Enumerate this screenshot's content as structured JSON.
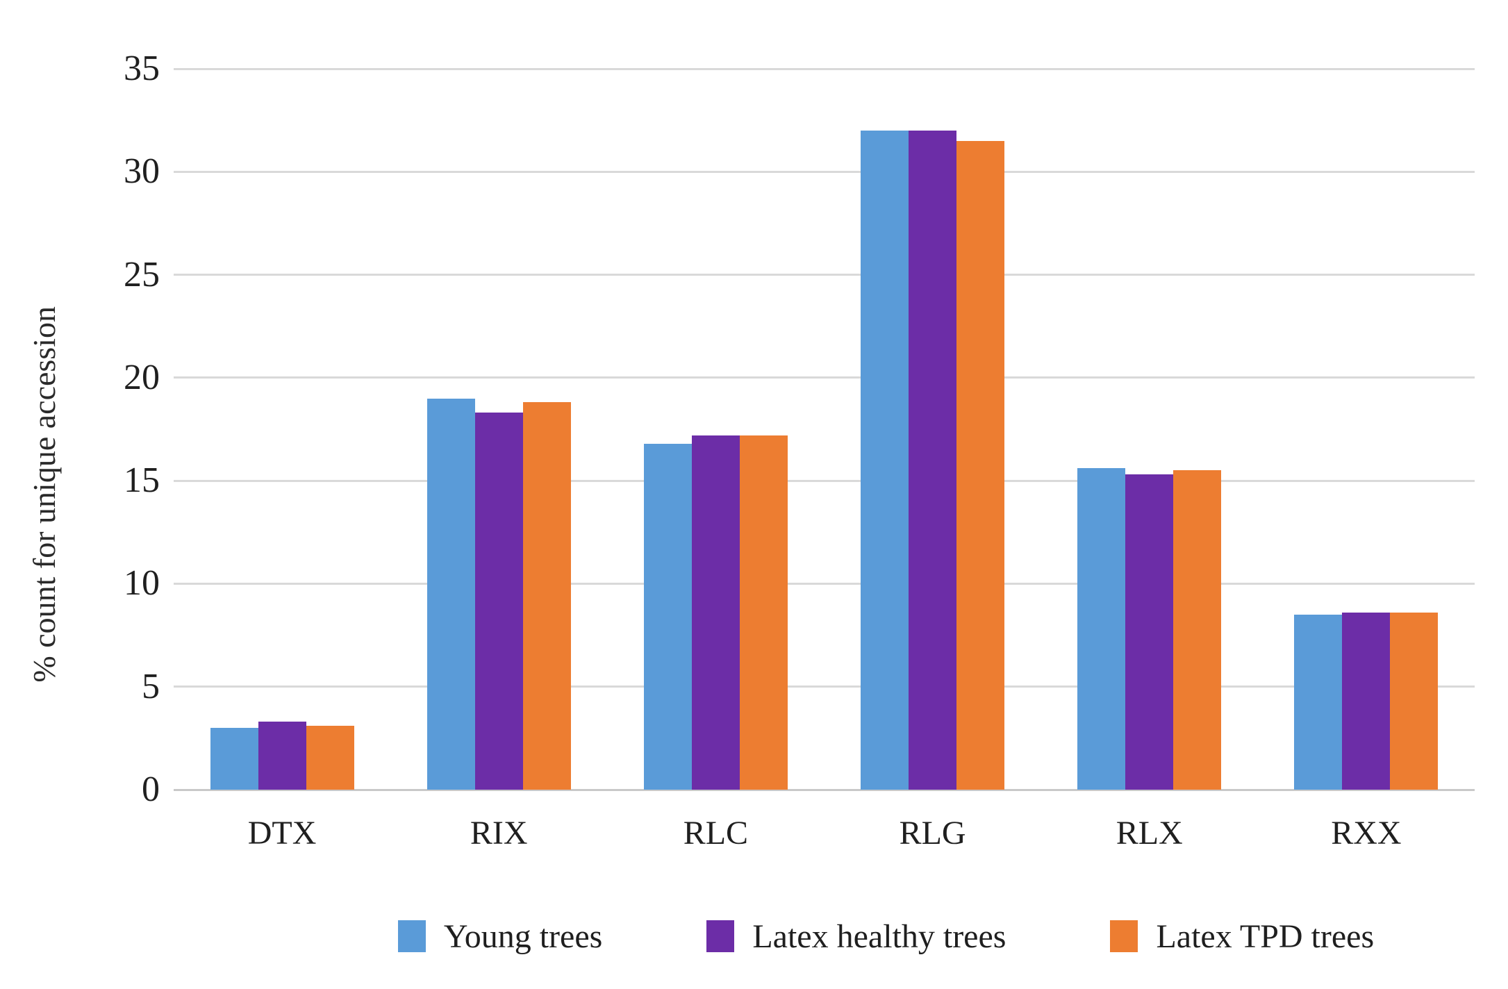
{
  "chart_data": {
    "type": "bar",
    "title": "",
    "xlabel": "",
    "ylabel": "% count for unique accession",
    "ylim": [
      0,
      35
    ],
    "yticks": [
      0,
      5,
      10,
      15,
      20,
      25,
      30,
      35
    ],
    "grid": "horizontal",
    "legend_position": "bottom",
    "categories": [
      "DTX",
      "RIX",
      "RLC",
      "RLG",
      "RLX",
      "RXX"
    ],
    "series": [
      {
        "name": "Young trees",
        "color": "#5A9BD8",
        "values": [
          3.0,
          19.0,
          16.8,
          32.0,
          15.6,
          8.5
        ]
      },
      {
        "name": "Latex healthy trees",
        "color": "#6C2DA7",
        "values": [
          3.3,
          18.3,
          17.2,
          32.0,
          15.3,
          8.6
        ]
      },
      {
        "name": "Latex TPD trees",
        "color": "#ED7D31",
        "values": [
          3.1,
          18.8,
          17.2,
          31.5,
          15.5,
          8.6
        ]
      }
    ]
  },
  "colors": {
    "gridline": "#d9d9d9",
    "baseline": "#c9c9c9",
    "text": "#1f1f1f",
    "background": "#ffffff"
  }
}
